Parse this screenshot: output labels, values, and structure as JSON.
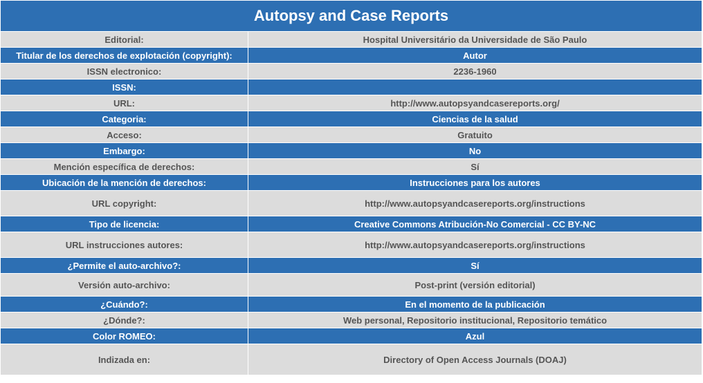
{
  "title": "Autopsy and Case Reports",
  "rows": [
    {
      "label": "Editorial:",
      "value": "Hospital Universitário da Universidade de São Paulo"
    },
    {
      "label": "Titular de los derechos de explotación (copyright):",
      "value": "Autor"
    },
    {
      "label": "ISSN electronico:",
      "value": "2236-1960"
    },
    {
      "label": "ISSN:",
      "value": ""
    },
    {
      "label": "URL:",
      "value": "http://www.autopsyandcasereports.org/"
    },
    {
      "label": "Categoria:",
      "value": "Ciencias de la salud"
    },
    {
      "label": "Acceso:",
      "value": "Gratuito"
    },
    {
      "label": "Embargo:",
      "value": "No"
    },
    {
      "label": "Mención específica de derechos:",
      "value": "Sí"
    },
    {
      "label": "Ubicación de la mención de derechos:",
      "value": "Instrucciones para los autores"
    },
    {
      "label": "URL copyright:",
      "value": "http://www.autopsyandcasereports.org/instructions"
    },
    {
      "label": "Tipo de licencia:",
      "value": "Creative Commons Atribución-No Comercial - CC BY-NC"
    },
    {
      "label": "URL instrucciones autores:",
      "value": "http://www.autopsyandcasereports.org/instructions"
    },
    {
      "label": "¿Permite el auto-archivo?:",
      "value": "Sí"
    },
    {
      "label": "Versión auto-archivo:",
      "value": "Post-print (versión editorial)"
    },
    {
      "label": "¿Cuándo?:",
      "value": "En el momento de la publicación"
    },
    {
      "label": "¿Dónde?:",
      "value": "Web personal, Repositorio institucional, Repositorio temático"
    },
    {
      "label": "Color ROMEO:",
      "value": "Azul"
    },
    {
      "label": "Indizada en:",
      "value": "Directory of Open Access Journals (DOAJ)"
    }
  ]
}
